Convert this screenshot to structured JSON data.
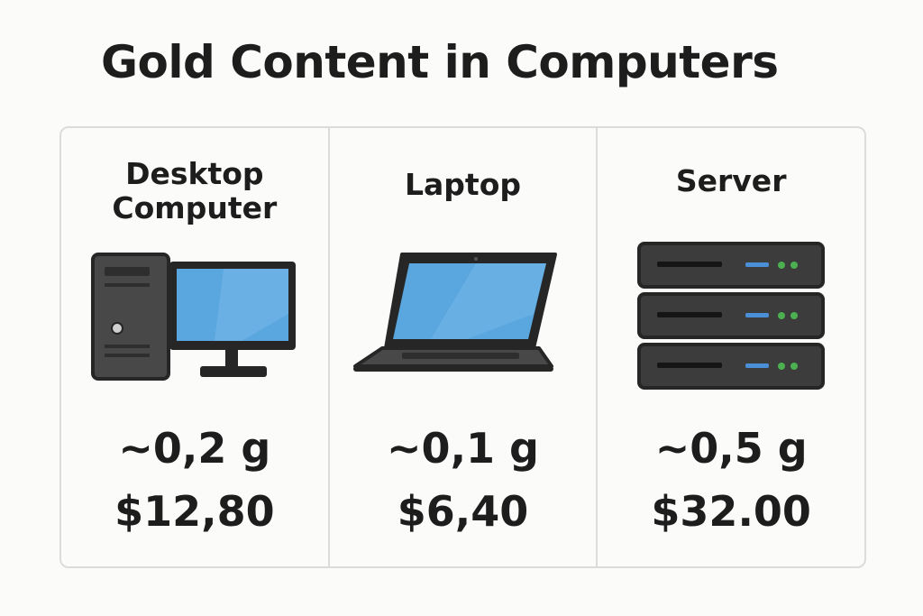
{
  "title": "Gold Content in Computers",
  "colors": {
    "screen": "#5aa6de",
    "dark": "#262626",
    "case": "#484848",
    "led_blue": "#4a90d9",
    "led_green": "#4caf50"
  },
  "items": [
    {
      "name_line1": "Desktop",
      "name_line2": "Computer",
      "icon": "desktop-computer-icon",
      "gold": "~0,2 g",
      "price": "$12,80"
    },
    {
      "name_line1": "Laptop",
      "icon": "laptop-icon",
      "gold": "~0,1 g",
      "price": "$6,40"
    },
    {
      "name_line1": "Server",
      "icon": "server-rack-icon",
      "gold": "~0,5 g",
      "price": "$32.00"
    }
  ]
}
